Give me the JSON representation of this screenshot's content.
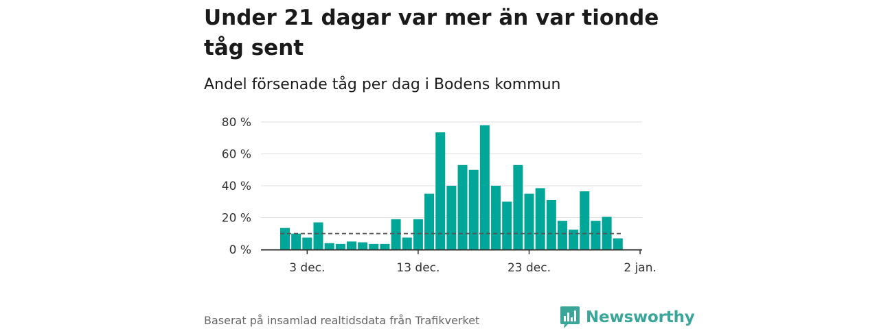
{
  "title": "Under 21 dagar var mer än var tionde tåg sent",
  "subtitle": "Andel försenade tåg per dag i Bodens kommun",
  "footer": "Baserat på insamlad realtidsdata från Trafikverket",
  "brand": {
    "name": "Newsworthy",
    "color": "#3aa69a"
  },
  "colors": {
    "bar": "#00a698",
    "reference_line": "#555555",
    "grid": "#dddddd",
    "axis": "#333333"
  },
  "chart_data": {
    "type": "bar",
    "x_unit": "day",
    "x": [
      "2023-12-01",
      "2023-12-02",
      "2023-12-03",
      "2023-12-04",
      "2023-12-05",
      "2023-12-06",
      "2023-12-07",
      "2023-12-08",
      "2023-12-09",
      "2023-12-10",
      "2023-12-11",
      "2023-12-12",
      "2023-12-13",
      "2023-12-14",
      "2023-12-15",
      "2023-12-16",
      "2023-12-17",
      "2023-12-18",
      "2023-12-19",
      "2023-12-20",
      "2023-12-21",
      "2023-12-22",
      "2023-12-23",
      "2023-12-24",
      "2023-12-25",
      "2023-12-26",
      "2023-12-27",
      "2023-12-28",
      "2023-12-29",
      "2023-12-30",
      "2023-12-31"
    ],
    "values": [
      13.5,
      10,
      7.5,
      17,
      4,
      3.5,
      5,
      4.5,
      3.5,
      3.5,
      19,
      7.5,
      19,
      35,
      73.5,
      40,
      53,
      50,
      78,
      40,
      30,
      53,
      35,
      38.5,
      31,
      18,
      12.5,
      36.5,
      18,
      20.5,
      7
    ],
    "reference_line": 10,
    "ylim": [
      0,
      80
    ],
    "y_ticks": [
      0,
      20,
      40,
      60,
      80
    ],
    "y_tick_labels": [
      "0 %",
      "20 %",
      "40 %",
      "60 %",
      "80 %"
    ],
    "x_ticks": [
      "2023-12-03",
      "2023-12-13",
      "2023-12-23",
      "2024-01-02"
    ],
    "x_tick_labels": [
      "3 dec.",
      "13 dec.",
      "23 dec.",
      "2 jan."
    ],
    "xlabel": "",
    "ylabel": "",
    "grid": true,
    "legend": "none"
  }
}
